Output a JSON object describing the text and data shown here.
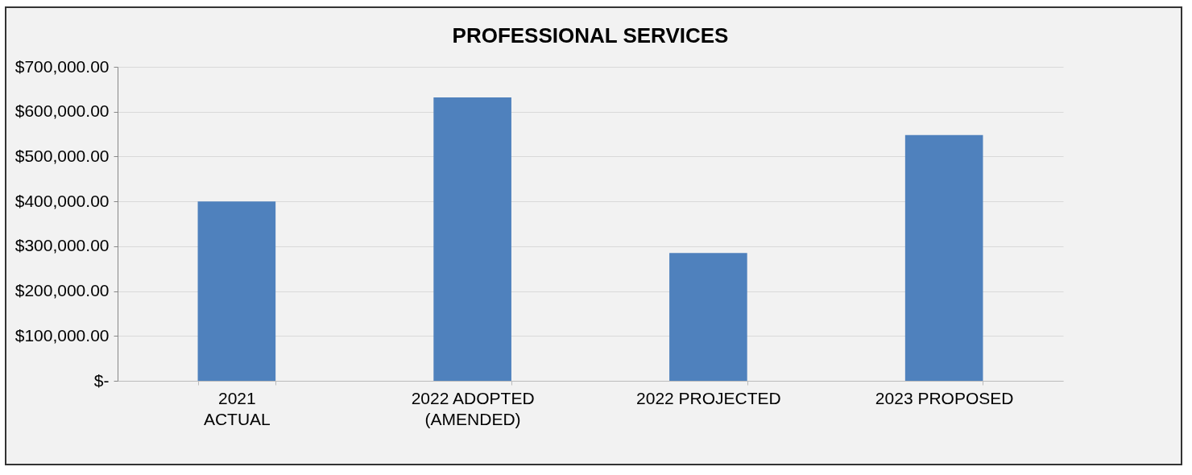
{
  "chart_data": {
    "type": "bar",
    "title": "PROFESSIONAL SERVICES",
    "categories": [
      "2021\nACTUAL",
      "2022 ADOPTED\n(AMENDED)",
      "2022 PROJECTED",
      "2023 PROPOSED"
    ],
    "values": [
      400000,
      632000,
      285000,
      548000
    ],
    "color": "#4f81bd",
    "ylim": [
      0,
      700000
    ],
    "yticks": [
      {
        "value": 0,
        "label": "$-"
      },
      {
        "value": 100000,
        "label": "$100,000.00"
      },
      {
        "value": 200000,
        "label": "$200,000.00"
      },
      {
        "value": 300000,
        "label": "$300,000.00"
      },
      {
        "value": 400000,
        "label": "$400,000.00"
      },
      {
        "value": 500000,
        "label": "$500,000.00"
      },
      {
        "value": 600000,
        "label": "$600,000.00"
      },
      {
        "value": 700000,
        "label": "$700,000.00"
      }
    ],
    "grid": "y"
  }
}
